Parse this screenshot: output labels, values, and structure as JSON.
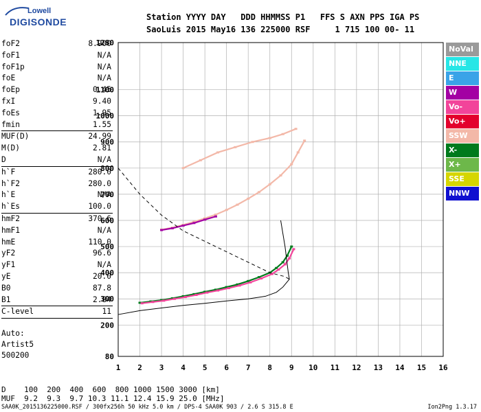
{
  "logo": {
    "top": "Lowell",
    "bottom": "DIGISONDE"
  },
  "header": {
    "line1": "Station YYYY DAY   DDD HHMMSS P1   FFS S AXN PPS IGA PS",
    "line2": "SaoLuis 2015 May16 136 225000 RSF     1 715 100 00- 11"
  },
  "params": [
    {
      "k": "foF2",
      "v": "8.900"
    },
    {
      "k": "foF1",
      "v": "N/A"
    },
    {
      "k": "foF1p",
      "v": "N/A"
    },
    {
      "k": "foE",
      "v": "N/A"
    },
    {
      "k": "foEp",
      "v": "0.45"
    },
    {
      "k": "fxI",
      "v": "9.40"
    },
    {
      "k": "foEs",
      "v": "1.95"
    },
    {
      "k": "fmin",
      "v": "1.55"
    },
    {
      "sep": true
    },
    {
      "k": "MUF(D)",
      "v": "24.99"
    },
    {
      "k": "M(D)",
      "v": "2.81"
    },
    {
      "k": "D",
      "v": "N/A"
    },
    {
      "sep": true
    },
    {
      "k": "h`F",
      "v": "280.0"
    },
    {
      "k": "h`F2",
      "v": "280.0"
    },
    {
      "k": "h`E",
      "v": "N/A"
    },
    {
      "k": "h`Es",
      "v": "100.0"
    },
    {
      "sep": true
    },
    {
      "k": "hmF2",
      "v": "370.6"
    },
    {
      "k": "hmF1",
      "v": "N/A"
    },
    {
      "k": "hmE",
      "v": "110.0"
    },
    {
      "k": "yF2",
      "v": "96.6"
    },
    {
      "k": "yF1",
      "v": "N/A"
    },
    {
      "k": "yE",
      "v": "20.0"
    },
    {
      "k": "B0",
      "v": "87.8"
    },
    {
      "k": "B1",
      "v": "2.84"
    },
    {
      "sep": true
    },
    {
      "k": "C-level",
      "v": "11"
    },
    {
      "sep": true
    }
  ],
  "auto": {
    "line1": "Auto:",
    "line2": "Artist5",
    "line3": "500200"
  },
  "legend": [
    {
      "label": "NoVal",
      "bg": "#9a9a9a",
      "fg": "#ffffff"
    },
    {
      "label": "NNE",
      "bg": "#27e6e6",
      "fg": "#ffffff"
    },
    {
      "label": "E",
      "bg": "#3aa3e8",
      "fg": "#ffffff"
    },
    {
      "label": "W",
      "bg": "#a300a3",
      "fg": "#ffffff"
    },
    {
      "label": "Vo-",
      "bg": "#f2449a",
      "fg": "#ffffff"
    },
    {
      "label": "Vo+",
      "bg": "#e3002d",
      "fg": "#ffffff"
    },
    {
      "label": "SSW",
      "bg": "#f3b8a8",
      "fg": "#ffffff"
    },
    {
      "label": "X-",
      "bg": "#007a1c",
      "fg": "#ffffff"
    },
    {
      "label": "X+",
      "bg": "#6db84a",
      "fg": "#ffffff"
    },
    {
      "label": "SSE",
      "bg": "#d6d600",
      "fg": "#ffffff"
    },
    {
      "label": "NNW",
      "bg": "#1010d0",
      "fg": "#ffffff"
    }
  ],
  "bottom": {
    "d_row": "D    100  200  400  600  800 1000 1500 3000 [km]",
    "muf_row": "MUF  9.2  9.3  9.7 10.3 11.1 12.4 15.9 25.0 [MHz]"
  },
  "footer": "SAA0K_2015136225000.RSF / 300fx256h 50 kHz 5.0 km / DPS-4 SAA0K 903 / 2.6 S 315.8 E",
  "version": "Ion2Png 1.3.17",
  "chart_data": {
    "type": "scatter",
    "xlabel": "",
    "ylabel": "",
    "xlim": [
      1,
      16
    ],
    "ylim": [
      80,
      1280
    ],
    "x_ticks": [
      1,
      2,
      3,
      4,
      5,
      6,
      7,
      8,
      9,
      10,
      11,
      12,
      13,
      14,
      15,
      16
    ],
    "y_ticks": [
      80,
      200,
      300,
      400,
      500,
      600,
      700,
      800,
      900,
      1000,
      1100,
      1280
    ],
    "series": [
      {
        "color": "#007a1c",
        "x": [
          2.0,
          2.5,
          3.0,
          3.5,
          4.0,
          4.5,
          5.0,
          5.5,
          6.0,
          6.5,
          7.0,
          7.5,
          8.0,
          8.3,
          8.6,
          8.8,
          9.0
        ],
        "y": [
          285,
          290,
          295,
          302,
          310,
          318,
          327,
          335,
          345,
          355,
          368,
          383,
          400,
          418,
          440,
          465,
          500
        ]
      },
      {
        "color": "#f2449a",
        "x": [
          2.1,
          2.6,
          3.1,
          3.6,
          4.1,
          4.6,
          5.1,
          5.6,
          6.1,
          6.6,
          7.1,
          7.6,
          8.1,
          8.4,
          8.7,
          8.9,
          9.1
        ],
        "y": [
          283,
          288,
          293,
          300,
          307,
          315,
          324,
          332,
          341,
          351,
          363,
          378,
          395,
          412,
          432,
          455,
          490
        ]
      },
      {
        "color": "#f3b8a8",
        "x": [
          3.0,
          3.5,
          4.0,
          4.5,
          5.0,
          5.5,
          6.0,
          6.5,
          7.0,
          7.5,
          8.0,
          8.5,
          9.0,
          9.3,
          9.6
        ],
        "y": [
          565,
          572,
          583,
          595,
          608,
          622,
          640,
          660,
          683,
          708,
          738,
          772,
          815,
          860,
          905
        ]
      },
      {
        "color": "#f3b8a8",
        "x": [
          4.0,
          4.8,
          5.6,
          6.4,
          7.2,
          8.0,
          8.6,
          9.2
        ],
        "y": [
          800,
          830,
          860,
          880,
          900,
          915,
          930,
          950
        ]
      },
      {
        "color": "#a300a3",
        "x": [
          3.0,
          3.5,
          4.0,
          4.5,
          5.0,
          5.5
        ],
        "y": [
          563,
          570,
          580,
          590,
          603,
          615
        ]
      }
    ],
    "profile_solid": {
      "x": [
        1.0,
        2.0,
        3.0,
        4.0,
        5.0,
        6.0,
        7.0,
        7.8,
        8.3,
        8.6,
        8.8,
        8.9,
        8.85,
        8.7,
        8.5
      ],
      "y": [
        240,
        255,
        265,
        275,
        283,
        292,
        300,
        310,
        325,
        345,
        365,
        375,
        400,
        500,
        600
      ]
    },
    "profile_dashed": {
      "x": [
        1.0,
        2.0,
        3.0,
        4.0,
        5.0,
        6.0,
        7.0,
        8.0,
        8.7,
        8.9
      ],
      "y": [
        800,
        700,
        620,
        560,
        520,
        480,
        440,
        400,
        385,
        375
      ]
    }
  }
}
